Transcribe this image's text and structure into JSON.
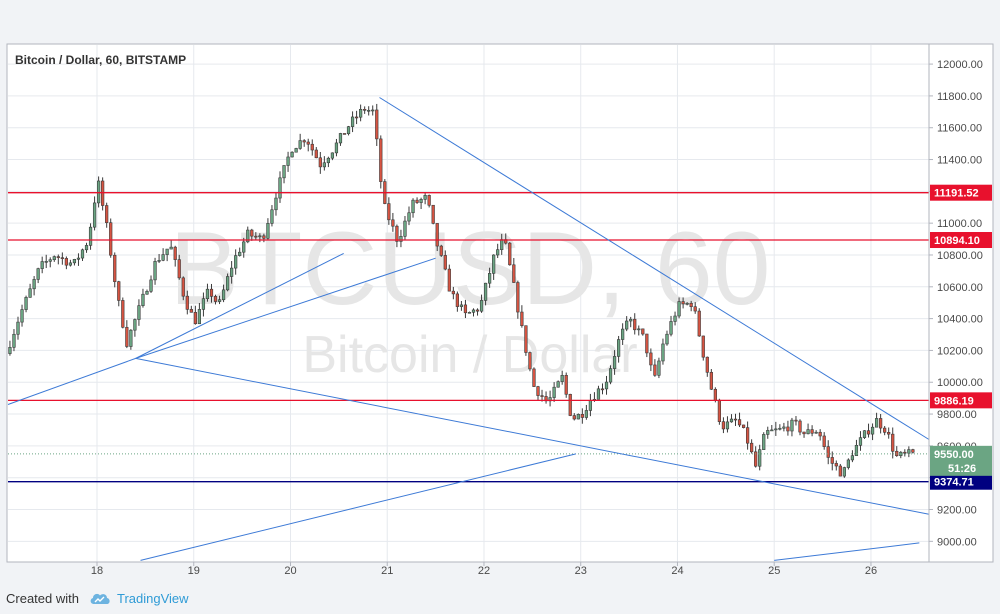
{
  "chart_data": {
    "type": "candlestick",
    "title": "Bitcoin / Dollar, 60, BITSTAMP",
    "watermark": {
      "symbol": "BTCUSD, 60",
      "name": "Bitcoin / Dollar"
    },
    "x_axis": {
      "ticks": [
        "18",
        "19",
        "20",
        "21",
        "22",
        "23",
        "24",
        "25",
        "26"
      ],
      "range": [
        17.08,
        26.6
      ]
    },
    "y_axis": {
      "ticks": [
        "9000.00",
        "9200.00",
        "9400.00",
        "9600.00",
        "9800.00",
        "10000.00",
        "10200.00",
        "10400.00",
        "10600.00",
        "10800.00",
        "11000.00",
        "11200.00",
        "11400.00",
        "11600.00",
        "11800.00",
        "12000.00"
      ],
      "range": [
        8870,
        12120
      ]
    },
    "price_series": [
      [
        17.1,
        10180
      ],
      [
        17.25,
        10430
      ],
      [
        17.45,
        10720
      ],
      [
        17.6,
        10800
      ],
      [
        17.8,
        10740
      ],
      [
        17.95,
        10890
      ],
      [
        18.05,
        11270
      ],
      [
        18.15,
        10950
      ],
      [
        18.25,
        10540
      ],
      [
        18.35,
        10250
      ],
      [
        18.5,
        10500
      ],
      [
        18.65,
        10760
      ],
      [
        18.8,
        10860
      ],
      [
        18.95,
        10520
      ],
      [
        19.05,
        10380
      ],
      [
        19.2,
        10580
      ],
      [
        19.3,
        10480
      ],
      [
        19.45,
        10760
      ],
      [
        19.6,
        10930
      ],
      [
        19.75,
        10900
      ],
      [
        19.9,
        11200
      ],
      [
        20.05,
        11470
      ],
      [
        20.2,
        11540
      ],
      [
        20.35,
        11370
      ],
      [
        20.5,
        11480
      ],
      [
        20.65,
        11620
      ],
      [
        20.8,
        11720
      ],
      [
        20.9,
        11700
      ],
      [
        21.0,
        11120
      ],
      [
        21.15,
        10890
      ],
      [
        21.3,
        11120
      ],
      [
        21.45,
        11160
      ],
      [
        21.55,
        10880
      ],
      [
        21.7,
        10560
      ],
      [
        21.85,
        10420
      ],
      [
        22.0,
        10470
      ],
      [
        22.15,
        10800
      ],
      [
        22.25,
        10900
      ],
      [
        22.35,
        10600
      ],
      [
        22.45,
        10280
      ],
      [
        22.55,
        9980
      ],
      [
        22.7,
        9870
      ],
      [
        22.85,
        10030
      ],
      [
        22.95,
        9770
      ],
      [
        23.05,
        9800
      ],
      [
        23.15,
        9900
      ],
      [
        23.3,
        10000
      ],
      [
        23.45,
        10290
      ],
      [
        23.55,
        10390
      ],
      [
        23.7,
        10270
      ],
      [
        23.8,
        10000
      ],
      [
        23.9,
        10260
      ],
      [
        24.05,
        10480
      ],
      [
        24.2,
        10500
      ],
      [
        24.3,
        10200
      ],
      [
        24.4,
        9940
      ],
      [
        24.5,
        9720
      ],
      [
        24.65,
        9760
      ],
      [
        24.75,
        9660
      ],
      [
        24.85,
        9470
      ],
      [
        24.95,
        9680
      ],
      [
        25.1,
        9700
      ],
      [
        25.25,
        9740
      ],
      [
        25.35,
        9680
      ],
      [
        25.5,
        9700
      ],
      [
        25.6,
        9520
      ],
      [
        25.75,
        9420
      ],
      [
        25.85,
        9560
      ],
      [
        26.0,
        9690
      ],
      [
        26.1,
        9760
      ],
      [
        26.2,
        9700
      ],
      [
        26.3,
        9530
      ],
      [
        26.45,
        9550
      ]
    ],
    "horizontal_levels": [
      {
        "price": 11191.52,
        "label": "11191.52",
        "color": "#e8112d"
      },
      {
        "price": 10894.1,
        "label": "10894.10",
        "color": "#e8112d"
      },
      {
        "price": 9886.19,
        "label": "9886.19",
        "color": "#e8112d"
      },
      {
        "price": 9374.71,
        "label": "9374.71",
        "color": "#000080"
      }
    ],
    "current_price": {
      "price": 9550.0,
      "label": "9550.00",
      "countdown": "51:26",
      "color": "#6ba583"
    },
    "trendlines": [
      {
        "from": [
          17.08,
          9860
        ],
        "to": [
          18.4,
          10150
        ],
        "color": "#3d7ad6"
      },
      {
        "from": [
          18.4,
          10150
        ],
        "to": [
          20.55,
          10810
        ],
        "color": "#3d7ad6"
      },
      {
        "from": [
          18.4,
          10150
        ],
        "to": [
          21.5,
          10780
        ],
        "color": "#3d7ad6"
      },
      {
        "from": [
          18.4,
          10150
        ],
        "to": [
          26.6,
          9170
        ],
        "color": "#3d7ad6"
      },
      {
        "from": [
          20.92,
          11790
        ],
        "to": [
          26.6,
          9640
        ],
        "color": "#3d7ad6"
      },
      {
        "from": [
          18.45,
          8880
        ],
        "to": [
          22.95,
          9550
        ],
        "color": "#3d7ad6"
      },
      {
        "from": [
          25.0,
          8880
        ],
        "to": [
          26.5,
          8990
        ],
        "color": "#3d7ad6"
      }
    ],
    "colors": {
      "up": "#6ba583",
      "down": "#d75442",
      "wick": "#3a3a3a",
      "grid": "#e6e9ee",
      "trendline": "#3d7ad6"
    },
    "grid": true,
    "legend_position": "top-left"
  },
  "footer": {
    "created_with": "Created with",
    "brand": "TradingView"
  }
}
